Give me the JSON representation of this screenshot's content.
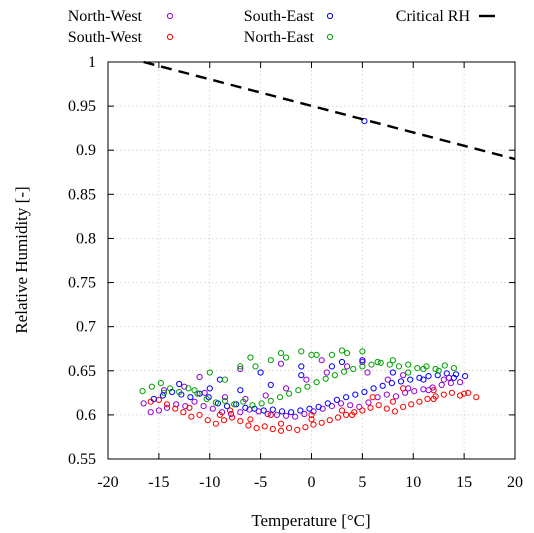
{
  "chart_data": {
    "type": "scatter",
    "xlabel": "Temperature [°C]",
    "ylabel": "Relative Humidity [-]",
    "xlim": [
      -20,
      20
    ],
    "ylim": [
      0.55,
      1.0
    ],
    "xticks": [
      -20,
      -15,
      -10,
      -5,
      0,
      5,
      10,
      15,
      20
    ],
    "yticks": [
      0.55,
      0.6,
      0.65,
      0.7,
      0.75,
      0.8,
      0.85,
      0.9,
      0.95,
      1
    ],
    "xtick_labels": [
      "-20",
      "-15",
      "-10",
      "-5",
      "0",
      "5",
      "10",
      "15",
      "20"
    ],
    "ytick_labels": [
      "0.55",
      "0.6",
      "0.65",
      "0.7",
      "0.75",
      "0.8",
      "0.85",
      "0.9",
      "0.95",
      "1"
    ],
    "grid": true,
    "legend_position": "top",
    "legend": [
      "North-West",
      "South-West",
      "South-East",
      "North-East",
      "Critical RH"
    ],
    "series": [
      {
        "name": "North-West",
        "marker": "circle",
        "color": "#9400d3",
        "x": [
          -16.5,
          -15.8,
          -15,
          -14.2,
          -13.3,
          -12.4,
          -11.5,
          -10.6,
          -9.7,
          -8.8,
          -7.9,
          -7,
          -6.1,
          -5.2,
          -4.3,
          -3.4,
          -2.5,
          -1.6,
          -0.7,
          0.2,
          1.1,
          2,
          2.9,
          3.8,
          4.7,
          5.6,
          6.5,
          7.4,
          8.3,
          9.2,
          10.1,
          11,
          11.9,
          12.8,
          13.7,
          14.6,
          -14.5,
          -12.5,
          -10.5,
          -8.5,
          -6.5,
          -4.5,
          -2.5,
          -0.5,
          1.5,
          3.5,
          5.5,
          7.5,
          9.5,
          11.5,
          13.5,
          -11,
          -7,
          -3,
          1,
          5,
          9,
          13
        ],
        "y": [
          0.613,
          0.603,
          0.605,
          0.608,
          0.612,
          0.61,
          0.615,
          0.61,
          0.607,
          0.603,
          0.601,
          0.603,
          0.606,
          0.604,
          0.601,
          0.6,
          0.599,
          0.598,
          0.601,
          0.604,
          0.607,
          0.61,
          0.613,
          0.611,
          0.609,
          0.614,
          0.62,
          0.623,
          0.621,
          0.625,
          0.627,
          0.629,
          0.631,
          0.634,
          0.636,
          0.637,
          0.628,
          0.632,
          0.625,
          0.62,
          0.618,
          0.622,
          0.63,
          0.64,
          0.648,
          0.655,
          0.648,
          0.64,
          0.63,
          0.628,
          0.642,
          0.643,
          0.652,
          0.658,
          0.662,
          0.66,
          0.645,
          0.64
        ]
      },
      {
        "name": "South-West",
        "marker": "circle",
        "color": "#ff0000",
        "x": [
          -15.8,
          -15,
          -14.2,
          -13.4,
          -12.6,
          -11.8,
          -11,
          -10.2,
          -9.4,
          -8.6,
          -7.8,
          -7,
          -6.2,
          -5.4,
          -4.6,
          -3.8,
          -3,
          -2.2,
          -1.4,
          -0.6,
          0.2,
          1,
          1.8,
          2.6,
          3.4,
          4.2,
          5,
          5.8,
          6.6,
          7.4,
          8.2,
          9,
          9.8,
          10.6,
          11.4,
          12.2,
          13,
          13.8,
          14.6,
          15.4,
          16.2,
          -12,
          -9,
          -6,
          -3,
          0,
          3,
          6,
          9,
          12,
          15,
          -8,
          -4,
          0,
          4,
          8,
          12
        ],
        "y": [
          0.615,
          0.617,
          0.612,
          0.607,
          0.603,
          0.598,
          0.6,
          0.594,
          0.59,
          0.594,
          0.597,
          0.593,
          0.588,
          0.585,
          0.587,
          0.584,
          0.582,
          0.585,
          0.583,
          0.586,
          0.589,
          0.591,
          0.594,
          0.597,
          0.6,
          0.603,
          0.605,
          0.608,
          0.611,
          0.607,
          0.604,
          0.609,
          0.612,
          0.615,
          0.618,
          0.621,
          0.623,
          0.625,
          0.622,
          0.625,
          0.62,
          0.608,
          0.6,
          0.595,
          0.59,
          0.595,
          0.605,
          0.62,
          0.63,
          0.628,
          0.624,
          0.605,
          0.6,
          0.6,
          0.6,
          0.615,
          0.618
        ]
      },
      {
        "name": "South-East",
        "marker": "circle",
        "color": "#0000ff",
        "x": [
          -15.5,
          -14.6,
          -13.7,
          -12.8,
          -11.9,
          -11,
          -10.1,
          -9.2,
          -8.3,
          -7.4,
          -6.5,
          -5.6,
          -4.7,
          -3.8,
          -2.9,
          -2,
          -1.1,
          -0.2,
          0.7,
          1.6,
          2.5,
          3.4,
          4.3,
          5.2,
          6.1,
          7,
          7.9,
          8.8,
          9.7,
          10.6,
          11.5,
          12.4,
          13.3,
          14.2,
          15.1,
          -13,
          -10,
          -7,
          -4,
          -1,
          2,
          5,
          8,
          11,
          14,
          -9,
          -5,
          -1,
          3,
          5.2
        ],
        "y": [
          0.618,
          0.622,
          0.626,
          0.623,
          0.62,
          0.624,
          0.62,
          0.613,
          0.61,
          0.612,
          0.608,
          0.607,
          0.605,
          0.606,
          0.604,
          0.603,
          0.605,
          0.607,
          0.609,
          0.613,
          0.617,
          0.62,
          0.623,
          0.626,
          0.63,
          0.633,
          0.636,
          0.638,
          0.64,
          0.642,
          0.644,
          0.645,
          0.647,
          0.646,
          0.644,
          0.635,
          0.63,
          0.628,
          0.634,
          0.645,
          0.655,
          0.662,
          0.648,
          0.64,
          0.642,
          0.64,
          0.648,
          0.655,
          0.66,
          0.933
        ]
      },
      {
        "name": "North-East",
        "marker": "circle",
        "color": "#00a000",
        "x": [
          -16.6,
          -15.7,
          -14.8,
          -13.9,
          -13,
          -12.1,
          -11.2,
          -10.3,
          -9.4,
          -8.5,
          -7.6,
          -6.7,
          -5.8,
          -4.9,
          -4,
          -3.1,
          -2.2,
          -1.3,
          -0.4,
          0.5,
          1.4,
          2.3,
          3.2,
          4.1,
          5,
          5.9,
          6.8,
          7.7,
          8.6,
          9.5,
          10.4,
          11.3,
          12.2,
          13.1,
          14,
          -14.5,
          -11.5,
          -8.5,
          -5.5,
          -2.5,
          0.5,
          3.5,
          6.5,
          9.5,
          12.5,
          -10,
          -7,
          -4,
          -1,
          2,
          5,
          8,
          11,
          -6,
          -3,
          0,
          3
        ],
        "y": [
          0.627,
          0.632,
          0.636,
          0.63,
          0.626,
          0.63,
          0.624,
          0.618,
          0.614,
          0.616,
          0.612,
          0.615,
          0.611,
          0.613,
          0.616,
          0.62,
          0.624,
          0.628,
          0.632,
          0.637,
          0.641,
          0.645,
          0.649,
          0.652,
          0.655,
          0.657,
          0.659,
          0.657,
          0.655,
          0.657,
          0.653,
          0.655,
          0.652,
          0.656,
          0.653,
          0.625,
          0.628,
          0.64,
          0.655,
          0.665,
          0.668,
          0.67,
          0.66,
          0.648,
          0.65,
          0.648,
          0.655,
          0.662,
          0.672,
          0.668,
          0.672,
          0.662,
          0.652,
          0.665,
          0.67,
          0.668,
          0.673
        ]
      },
      {
        "name": "Critical RH",
        "line": "dashed",
        "color": "#000000",
        "x": [
          -16.5,
          20
        ],
        "y": [
          1.0,
          0.89
        ]
      }
    ]
  }
}
